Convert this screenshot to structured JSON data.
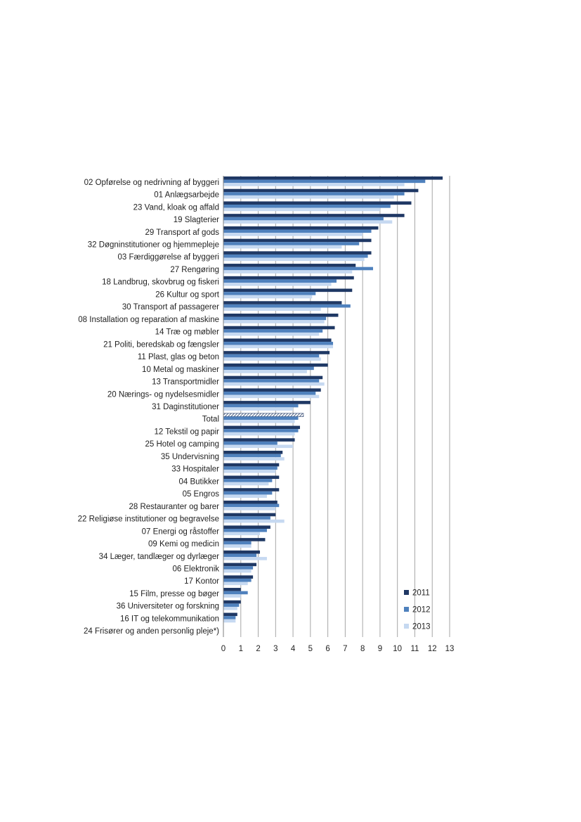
{
  "chart_data": {
    "type": "bar",
    "orientation": "horizontal",
    "categories": [
      "02 Opførelse og nedrivning af byggeri",
      "01 Anlægsarbejde",
      "23 Vand, kloak og affald",
      "19 Slagterier",
      "29 Transport af gods",
      "32 Døgninstitutioner og hjemmepleje",
      "03 Færdiggørelse af byggeri",
      "27 Rengøring",
      "18 Landbrug, skovbrug og fiskeri",
      "26 Kultur og sport",
      "30 Transport af passagerer",
      "08 Installation og reparation af maskine",
      "14 Træ og møbler",
      "21 Politi, beredskab og fængsler",
      "11 Plast, glas og beton",
      "10 Metal og maskiner",
      "13 Transportmidler",
      "20 Nærings- og nydelsesmidler",
      "31 Daginstitutioner",
      "Total",
      "12 Tekstil og papir",
      "25 Hotel og camping",
      "35 Undervisning",
      "33 Hospitaler",
      "04 Butikker",
      "05 Engros",
      "28 Restauranter og barer",
      "22 Religiøse institutioner og begravelse",
      "07 Energi og råstoffer",
      "09 Kemi og medicin",
      "34 Læger, tandlæger og dyrlæger",
      "06 Elektronik",
      "17 Kontor",
      "15 Film, presse og bøger",
      "36 Universiteter og forskning",
      "16 IT og telekommunikation",
      "24 Frisører og anden personlig pleje*)"
    ],
    "series": [
      {
        "name": "2011",
        "color": "#1f3864",
        "values": [
          12.6,
          11.2,
          10.8,
          10.4,
          8.9,
          8.5,
          8.5,
          7.6,
          7.5,
          7.4,
          6.8,
          6.6,
          6.4,
          6.2,
          6.1,
          6.0,
          5.7,
          5.6,
          5.0,
          4.6,
          4.4,
          4.1,
          3.4,
          3.2,
          3.2,
          3.2,
          3.1,
          3.0,
          2.7,
          2.4,
          2.1,
          1.9,
          1.7,
          1.0,
          1.0,
          0.8,
          0.0
        ]
      },
      {
        "name": "2012",
        "color": "#4f81bd",
        "values": [
          11.6,
          10.4,
          9.6,
          9.2,
          8.5,
          7.8,
          8.3,
          8.6,
          6.5,
          5.3,
          7.3,
          5.9,
          5.7,
          6.3,
          5.5,
          5.2,
          5.5,
          5.3,
          4.3,
          4.3,
          4.3,
          3.1,
          3.3,
          3.1,
          2.8,
          2.8,
          3.2,
          2.7,
          2.5,
          1.6,
          1.9,
          1.7,
          1.6,
          1.4,
          0.9,
          0.7,
          0.0
        ]
      },
      {
        "name": "2013",
        "color": "#c6d9f1",
        "values": [
          10.4,
          9.8,
          9.0,
          9.7,
          8.0,
          6.8,
          8.1,
          7.4,
          6.2,
          5.1,
          5.6,
          5.8,
          5.5,
          6.3,
          5.6,
          4.8,
          5.8,
          5.5,
          4.0,
          4.1,
          4.1,
          4.0,
          3.5,
          3.0,
          2.6,
          2.5,
          3.0,
          3.5,
          2.1,
          1.6,
          2.5,
          1.6,
          1.4,
          1.0,
          0.8,
          0.7,
          0.0
        ]
      }
    ],
    "highlight_category": "Total",
    "xlim": [
      0,
      13
    ],
    "xticks": [
      0,
      1,
      2,
      3,
      4,
      5,
      6,
      7,
      8,
      9,
      10,
      11,
      12,
      13
    ],
    "grid": "vertical",
    "legend": {
      "placement": "bottom-right",
      "entries": [
        "2011",
        "2012",
        "2013"
      ]
    },
    "title": "",
    "xlabel": "",
    "ylabel": ""
  }
}
